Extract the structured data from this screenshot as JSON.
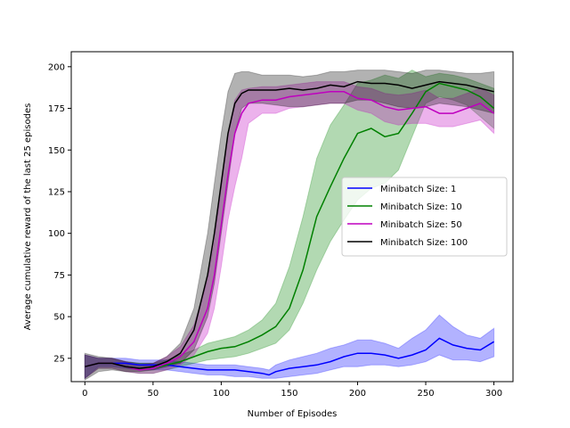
{
  "chart_data": {
    "type": "line",
    "title": "",
    "xlabel": "Number of Episodes",
    "ylabel": "Average cumulative reward of the last 25 episodes",
    "xlim": [
      -10,
      314
    ],
    "ylim": [
      11,
      209
    ],
    "xticks": [
      0,
      50,
      100,
      150,
      200,
      250,
      300
    ],
    "yticks": [
      25,
      50,
      75,
      100,
      125,
      150,
      175,
      200
    ],
    "legend_position": "center-right",
    "series": [
      {
        "name": "Minibatch Size: 1",
        "color": "#0000ff",
        "x": [
          0,
          10,
          20,
          30,
          40,
          50,
          60,
          70,
          80,
          90,
          100,
          110,
          120,
          130,
          135,
          140,
          150,
          160,
          170,
          180,
          190,
          200,
          210,
          220,
          230,
          240,
          250,
          260,
          270,
          280,
          290,
          300
        ],
        "mean": [
          20,
          22,
          22,
          22,
          21,
          21,
          21,
          20,
          19,
          18,
          18,
          18,
          17,
          16,
          15,
          17,
          19,
          20,
          21,
          23,
          26,
          28,
          28,
          27,
          25,
          27,
          30,
          37,
          33,
          31,
          30,
          35
        ],
        "lower": [
          13,
          20,
          20,
          19,
          18,
          18,
          18,
          17,
          16,
          15,
          15,
          14,
          14,
          13,
          13,
          13,
          14,
          15,
          16,
          18,
          20,
          20,
          21,
          21,
          20,
          21,
          23,
          27,
          24,
          24,
          23,
          26
        ],
        "upper": [
          27,
          25,
          25,
          25,
          24,
          24,
          24,
          23,
          22,
          21,
          21,
          21,
          20,
          19,
          18,
          21,
          24,
          26,
          28,
          31,
          33,
          36,
          36,
          34,
          31,
          37,
          42,
          51,
          44,
          39,
          37,
          43
        ]
      },
      {
        "name": "Minibatch Size: 10",
        "color": "#008000",
        "x": [
          0,
          10,
          20,
          30,
          40,
          50,
          60,
          70,
          80,
          90,
          100,
          110,
          120,
          130,
          140,
          150,
          160,
          170,
          180,
          190,
          200,
          210,
          220,
          230,
          240,
          250,
          260,
          270,
          280,
          290,
          300
        ],
        "mean": [
          20,
          22,
          22,
          20,
          19,
          19,
          21,
          23,
          26,
          29,
          31,
          32,
          35,
          39,
          44,
          55,
          78,
          110,
          128,
          145,
          160,
          163,
          158,
          160,
          172,
          185,
          190,
          188,
          186,
          182,
          175
        ],
        "lower": [
          13,
          19,
          19,
          17,
          16,
          16,
          18,
          20,
          22,
          24,
          25,
          26,
          28,
          31,
          34,
          42,
          58,
          78,
          95,
          108,
          120,
          127,
          130,
          138,
          158,
          178,
          182,
          180,
          177,
          170,
          163
        ],
        "upper": [
          27,
          25,
          25,
          23,
          22,
          22,
          24,
          27,
          30,
          34,
          36,
          38,
          42,
          48,
          58,
          80,
          110,
          145,
          165,
          177,
          190,
          192,
          195,
          193,
          198,
          194,
          196,
          195,
          193,
          190,
          187
        ]
      },
      {
        "name": "Minibatch Size: 50",
        "color": "#bf00bf",
        "x": [
          0,
          10,
          20,
          30,
          40,
          50,
          60,
          70,
          80,
          90,
          95,
          100,
          105,
          110,
          115,
          120,
          130,
          140,
          150,
          160,
          170,
          180,
          190,
          200,
          210,
          220,
          230,
          240,
          250,
          260,
          270,
          280,
          290,
          300
        ],
        "mean": [
          20,
          22,
          22,
          20,
          18,
          19,
          22,
          26,
          35,
          55,
          75,
          105,
          135,
          160,
          172,
          178,
          180,
          180,
          182,
          183,
          184,
          185,
          185,
          181,
          180,
          176,
          174,
          175,
          176,
          172,
          172,
          175,
          178,
          172
        ],
        "lower": [
          13,
          19,
          19,
          17,
          16,
          16,
          18,
          21,
          27,
          40,
          55,
          80,
          108,
          128,
          145,
          166,
          172,
          172,
          175,
          176,
          177,
          178,
          178,
          174,
          172,
          167,
          165,
          166,
          166,
          164,
          164,
          166,
          168,
          160
        ],
        "upper": [
          27,
          25,
          25,
          23,
          21,
          22,
          26,
          32,
          45,
          72,
          95,
          128,
          160,
          180,
          186,
          187,
          188,
          188,
          189,
          190,
          191,
          191,
          191,
          188,
          187,
          184,
          183,
          184,
          186,
          181,
          181,
          184,
          187,
          183
        ]
      },
      {
        "name": "Minibatch Size: 100",
        "color": "#000000",
        "x": [
          0,
          10,
          20,
          30,
          40,
          50,
          60,
          70,
          80,
          90,
          95,
          100,
          105,
          110,
          115,
          120,
          130,
          140,
          150,
          160,
          170,
          180,
          190,
          200,
          210,
          220,
          230,
          240,
          250,
          260,
          270,
          280,
          290,
          300
        ],
        "mean": [
          20,
          22,
          22,
          20,
          19,
          20,
          23,
          28,
          42,
          75,
          100,
          130,
          160,
          178,
          184,
          186,
          186,
          186,
          187,
          186,
          187,
          189,
          188,
          191,
          190,
          190,
          189,
          187,
          189,
          191,
          190,
          189,
          187,
          185
        ],
        "lower": [
          12,
          17,
          18,
          17,
          17,
          18,
          20,
          22,
          30,
          50,
          70,
          100,
          130,
          160,
          175,
          178,
          178,
          177,
          176,
          176,
          177,
          178,
          178,
          180,
          180,
          178,
          176,
          175,
          176,
          178,
          177,
          176,
          174,
          172
        ],
        "upper": [
          28,
          26,
          25,
          23,
          22,
          22,
          26,
          34,
          55,
          100,
          130,
          160,
          185,
          196,
          197,
          197,
          195,
          195,
          195,
          194,
          195,
          197,
          197,
          198,
          198,
          198,
          197,
          196,
          198,
          198,
          197,
          196,
          196,
          197
        ]
      }
    ]
  }
}
